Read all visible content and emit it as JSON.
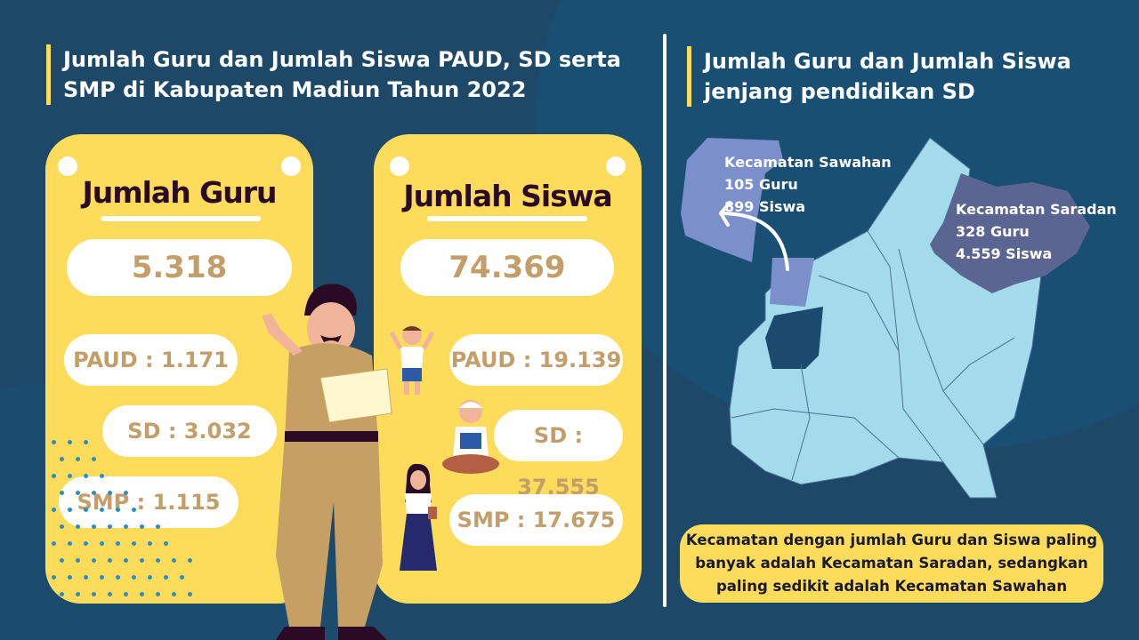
{
  "left": {
    "title": "Jumlah Guru dan Jumlah Siswa PAUD, SD serta SMP di Kabupaten Madiun Tahun 2022",
    "guru": {
      "heading": "Jumlah Guru",
      "total": "5.318",
      "paud": "PAUD : 1.171",
      "sd": "SD : 3.032",
      "smp": "SMP : 1.115"
    },
    "siswa": {
      "heading": "Jumlah Siswa",
      "total": "74.369",
      "paud": "PAUD : 19.139",
      "sd": "SD : 37.555",
      "smp": "SMP : 17.675"
    }
  },
  "right": {
    "title": "Jumlah Guru dan Jumlah Siswa jenjang pendidikan SD",
    "sawahan": {
      "name": "Kecamatan Sawahan",
      "guru": "105 Guru",
      "siswa": "899 Siswa"
    },
    "saradan": {
      "name": "Kecamatan Saradan",
      "guru": "328 Guru",
      "siswa": "4.559 Siswa"
    },
    "note": "Kecamatan dengan jumlah Guru dan Siswa paling banyak adalah Kecamatan Saradan, sedangkan paling sedikit adalah Kecamatan Sawahan"
  },
  "colors": {
    "background": "#1d4868",
    "card": "#fddc5c",
    "number": "#c39e6a",
    "map": "#a3dbec",
    "sawahan": "#7b8fcb",
    "saradan": "#5a6691"
  }
}
